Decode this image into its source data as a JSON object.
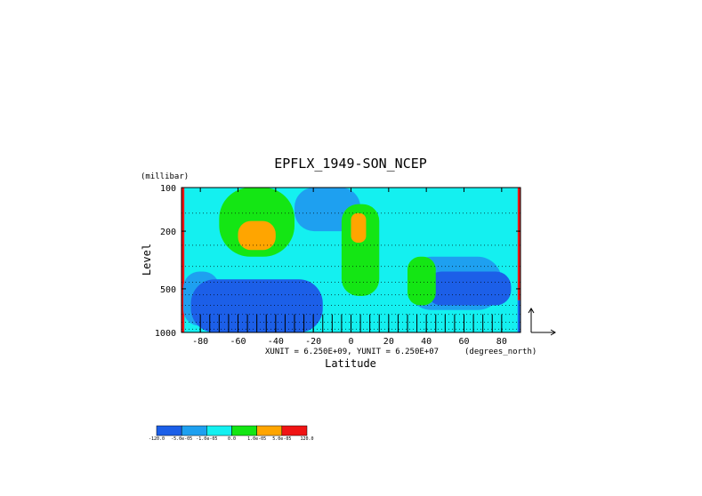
{
  "chart_data": {
    "type": "heatmap",
    "title": "EPFLX_1949-SON_NCEP",
    "xlabel": "Latitude",
    "ylabel": "Level",
    "y_units": "(millibar)",
    "x_units": "(degrees_north)",
    "x_ticks": [
      "-80",
      "-60",
      "-40",
      "-20",
      "0",
      "20",
      "40",
      "60",
      "80"
    ],
    "y_ticks": [
      "100",
      "200",
      "500",
      "1000"
    ],
    "xlim": [
      -90,
      90
    ],
    "ylim": [
      1000,
      100
    ],
    "y_scale": "log",
    "unit_note": "XUNIT = 6.250E+09, YUNIT = 6.250E+07",
    "colorbar": {
      "colors": [
        "#1c5fe8",
        "#1ea0f0",
        "#14f0f0",
        "#14e614",
        "#ffa500",
        "#f01414"
      ],
      "labels": [
        "-120.0",
        "-5.0e-05",
        "-1.0e-05",
        "0.0",
        "1.0e-05",
        "5.0e-05",
        "120.0"
      ]
    },
    "background_level": "-1.0e-05 to 0.0",
    "regions": [
      {
        "level": "5.0e-05 to 120.0",
        "x": [
          -90,
          -88.5
        ],
        "p": [
          100,
          1000
        ]
      },
      {
        "level": "-5.0e-05 to -1.0e-05",
        "x": [
          -89,
          -70
        ],
        "p": [
          380,
          900
        ]
      },
      {
        "level": "-120.0 to -5.0e-05",
        "x": [
          -85,
          -15
        ],
        "p": [
          430,
          1000
        ]
      },
      {
        "level": "0.0 to 1.0e-05",
        "x": [
          -70,
          -30
        ],
        "p": [
          100,
          300
        ]
      },
      {
        "level": "1.0e-05 to 5.0e-05",
        "x": [
          -60,
          -40
        ],
        "p": [
          170,
          270
        ]
      },
      {
        "level": "-5.0e-05 to -1.0e-05",
        "x": [
          -30,
          5
        ],
        "p": [
          100,
          200
        ]
      },
      {
        "level": "0.0 to 1.0e-05",
        "x": [
          -5,
          15
        ],
        "p": [
          130,
          560
        ]
      },
      {
        "level": "1.0e-05 to 5.0e-05",
        "x": [
          0,
          8
        ],
        "p": [
          150,
          240
        ]
      },
      {
        "level": "-5.0e-05 to -1.0e-05",
        "x": [
          30,
          80
        ],
        "p": [
          300,
          700
        ]
      },
      {
        "level": "-120.0 to -5.0e-05",
        "x": [
          40,
          85
        ],
        "p": [
          380,
          650
        ]
      },
      {
        "level": "0.0 to 1.0e-05",
        "x": [
          30,
          45
        ],
        "p": [
          300,
          650
        ]
      },
      {
        "level": "5.0e-05 to 120.0",
        "x": [
          88.5,
          90
        ],
        "p": [
          100,
          600
        ]
      },
      {
        "level": "-120.0 to -5.0e-05",
        "x": [
          88.5,
          90
        ],
        "p": [
          600,
          1000
        ]
      }
    ],
    "grid": true
  }
}
